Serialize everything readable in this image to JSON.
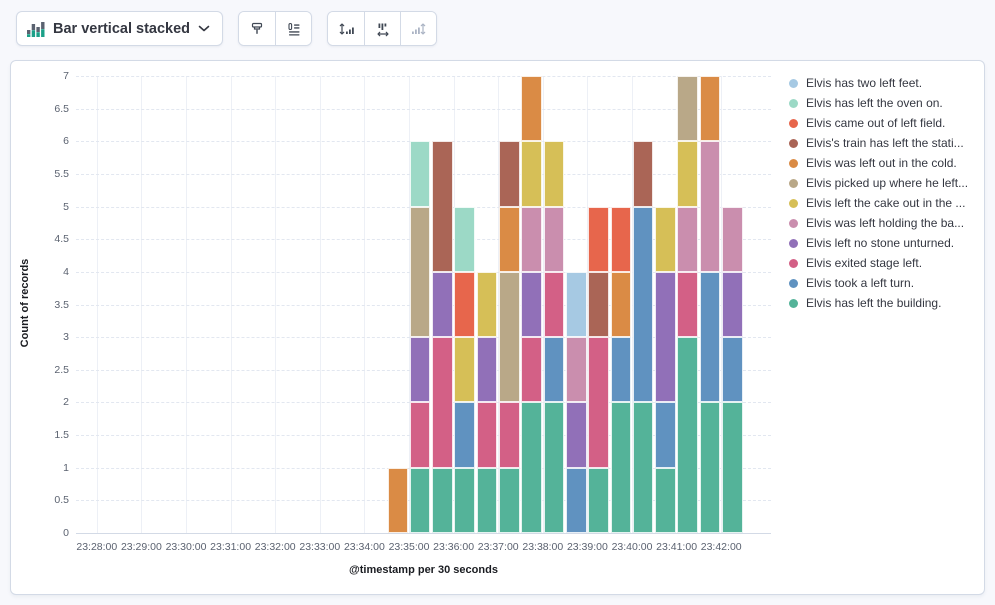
{
  "toolbar": {
    "chart_type": {
      "label": "Bar vertical stacked",
      "icon": "bar-vertical-stacked-icon"
    },
    "icon_buttons": [
      {
        "name": "visual-options",
        "icon": "paint-brush-icon",
        "disabled": false
      },
      {
        "name": "legend-settings",
        "icon": "list-icon",
        "disabled": false
      },
      {
        "name": "left-axis",
        "icon": "axis-left-icon",
        "disabled": false
      },
      {
        "name": "bottom-axis",
        "icon": "axis-bottom-icon",
        "disabled": false
      },
      {
        "name": "right-axis",
        "icon": "axis-right-icon",
        "disabled": true
      }
    ]
  },
  "chart_data": {
    "type": "bar",
    "mode": "vertical-stacked",
    "title": "",
    "xlabel": "@timestamp per 30 seconds",
    "ylabel": "Count of records",
    "ylim": [
      0,
      7
    ],
    "grid": true,
    "legend_position": "right",
    "y_tick_labels": [
      "0",
      "0.5",
      "1",
      "1.5",
      "2",
      "2.5",
      "3",
      "3.5",
      "4",
      "4.5",
      "5",
      "5.5",
      "6",
      "6.5",
      "7"
    ],
    "x_tick_labels": [
      "23:28:00",
      "23:29:00",
      "23:30:00",
      "23:31:00",
      "23:32:00",
      "23:33:00",
      "23:34:00",
      "23:35:00",
      "23:36:00",
      "23:37:00",
      "23:38:00",
      "23:39:00",
      "23:40:00",
      "23:41:00",
      "23:42:00"
    ],
    "categories": [
      "23:34:30",
      "23:35:00",
      "23:35:30",
      "23:36:00",
      "23:36:30",
      "23:37:00",
      "23:37:30",
      "23:38:00",
      "23:38:30",
      "23:39:00",
      "23:39:30",
      "23:40:00",
      "23:40:30",
      "23:41:00",
      "23:41:30",
      "23:42:00"
    ],
    "series_bottom_to_top": [
      {
        "name": "Elvis has left the building.",
        "color": "#54B399",
        "values": [
          0,
          1,
          1,
          1,
          1,
          1,
          2,
          2,
          0,
          1,
          2,
          2,
          1,
          3,
          2,
          2
        ]
      },
      {
        "name": "Elvis took a left turn.",
        "color": "#6092C0",
        "values": [
          0,
          0,
          0,
          1,
          0,
          0,
          0,
          1,
          1,
          0,
          1,
          3,
          1,
          0,
          2,
          1
        ]
      },
      {
        "name": "Elvis exited stage left.",
        "color": "#D36086",
        "values": [
          0,
          1,
          2,
          0,
          1,
          1,
          1,
          1,
          0,
          2,
          0,
          0,
          0,
          1,
          0,
          0
        ]
      },
      {
        "name": "Elvis left no stone unturned.",
        "color": "#9170B8",
        "values": [
          0,
          1,
          1,
          0,
          1,
          0,
          1,
          0,
          1,
          0,
          0,
          0,
          2,
          0,
          0,
          1
        ]
      },
      {
        "name": "Elvis was left holding the ba...",
        "color": "#CA8EAE",
        "values": [
          0,
          0,
          0,
          0,
          0,
          0,
          1,
          1,
          1,
          0,
          0,
          0,
          0,
          1,
          2,
          1
        ]
      },
      {
        "name": "Elvis left the cake out in the ...",
        "color": "#D6BF57",
        "values": [
          0,
          0,
          0,
          1,
          1,
          0,
          1,
          1,
          0,
          0,
          0,
          0,
          1,
          1,
          0,
          0
        ]
      },
      {
        "name": "Elvis picked up where he left...",
        "color": "#B9A888",
        "values": [
          0,
          2,
          0,
          0,
          0,
          2,
          0,
          0,
          0,
          0,
          0,
          0,
          0,
          1,
          0,
          0
        ]
      },
      {
        "name": "Elvis was left out in the cold.",
        "color": "#DA8B45",
        "values": [
          1,
          0,
          0,
          0,
          0,
          1,
          1,
          0,
          0,
          0,
          1,
          0,
          0,
          0,
          1,
          0
        ]
      },
      {
        "name": "Elvis's train has left the stati...",
        "color": "#AA6556",
        "values": [
          0,
          0,
          2,
          0,
          0,
          1,
          0,
          0,
          0,
          1,
          0,
          1,
          0,
          0,
          0,
          0
        ]
      },
      {
        "name": "Elvis came out of left field.",
        "color": "#E7664C",
        "values": [
          0,
          0,
          0,
          1,
          0,
          0,
          0,
          0,
          0,
          1,
          1,
          0,
          0,
          0,
          0,
          0
        ]
      },
      {
        "name": "Elvis has left the oven on.",
        "color": "#9CD9C6",
        "values": [
          0,
          1,
          0,
          1,
          0,
          0,
          0,
          0,
          0,
          0,
          0,
          0,
          0,
          0,
          0,
          0
        ]
      },
      {
        "name": "Elvis has two left feet.",
        "color": "#A6C9E3",
        "values": [
          0,
          0,
          0,
          0,
          0,
          0,
          0,
          0,
          1,
          0,
          0,
          0,
          0,
          0,
          0,
          0
        ]
      }
    ]
  }
}
